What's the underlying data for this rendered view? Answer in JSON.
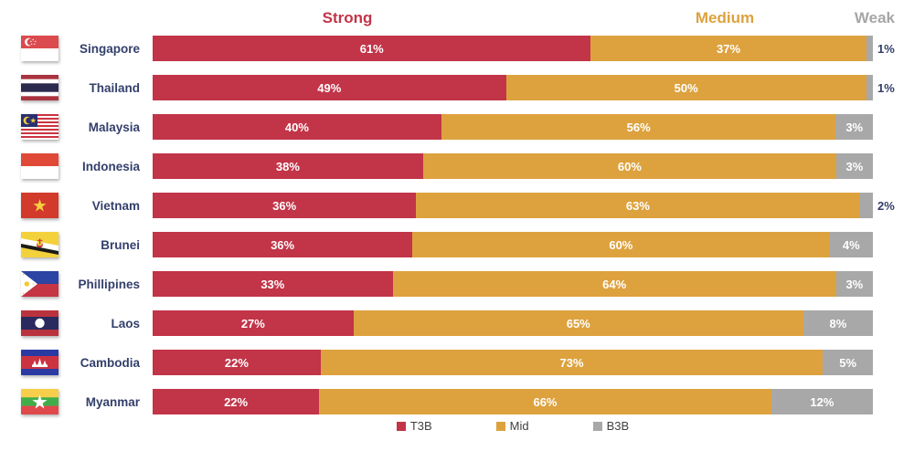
{
  "chart_data": {
    "type": "bar",
    "orientation": "horizontal",
    "stacked": true,
    "value_suffix": "%",
    "xlim": [
      0,
      100
    ],
    "grid": false,
    "legend_position": "bottom",
    "column_headers": [
      "Strong",
      "Medium",
      "Weak"
    ],
    "categories": [
      "Singapore",
      "Thailand",
      "Malaysia",
      "Indonesia",
      "Vietnam",
      "Brunei",
      "Phillipines",
      "Laos",
      "Cambodia",
      "Myanmar"
    ],
    "series": [
      {
        "name": "T3B",
        "header": "Strong",
        "color": "#C23448",
        "values": [
          61,
          49,
          40,
          38,
          36,
          36,
          33,
          27,
          22,
          22
        ]
      },
      {
        "name": "Mid",
        "header": "Medium",
        "color": "#DDA23E",
        "values": [
          37,
          50,
          56,
          60,
          63,
          60,
          64,
          65,
          73,
          66
        ]
      },
      {
        "name": "B3B",
        "header": "Weak",
        "color": "#A8A8A8",
        "values": [
          1,
          1,
          3,
          3,
          2,
          4,
          3,
          8,
          5,
          12
        ]
      }
    ],
    "weak_label_outside": [
      true,
      true,
      false,
      false,
      true,
      false,
      false,
      false,
      false,
      false
    ]
  },
  "flags": [
    "singapore",
    "thailand",
    "malaysia",
    "indonesia",
    "vietnam",
    "brunei",
    "phillipines",
    "laos",
    "cambodia",
    "myanmar"
  ],
  "colors": {
    "strong": "#C23448",
    "medium": "#DDA23E",
    "weak": "#A8A8A8",
    "header_weak": "#A6A6A6",
    "country_label": "#333F6B",
    "segment_label": "#FFFFFF",
    "legend_text": "#404040",
    "background": "#FFFFFF"
  }
}
